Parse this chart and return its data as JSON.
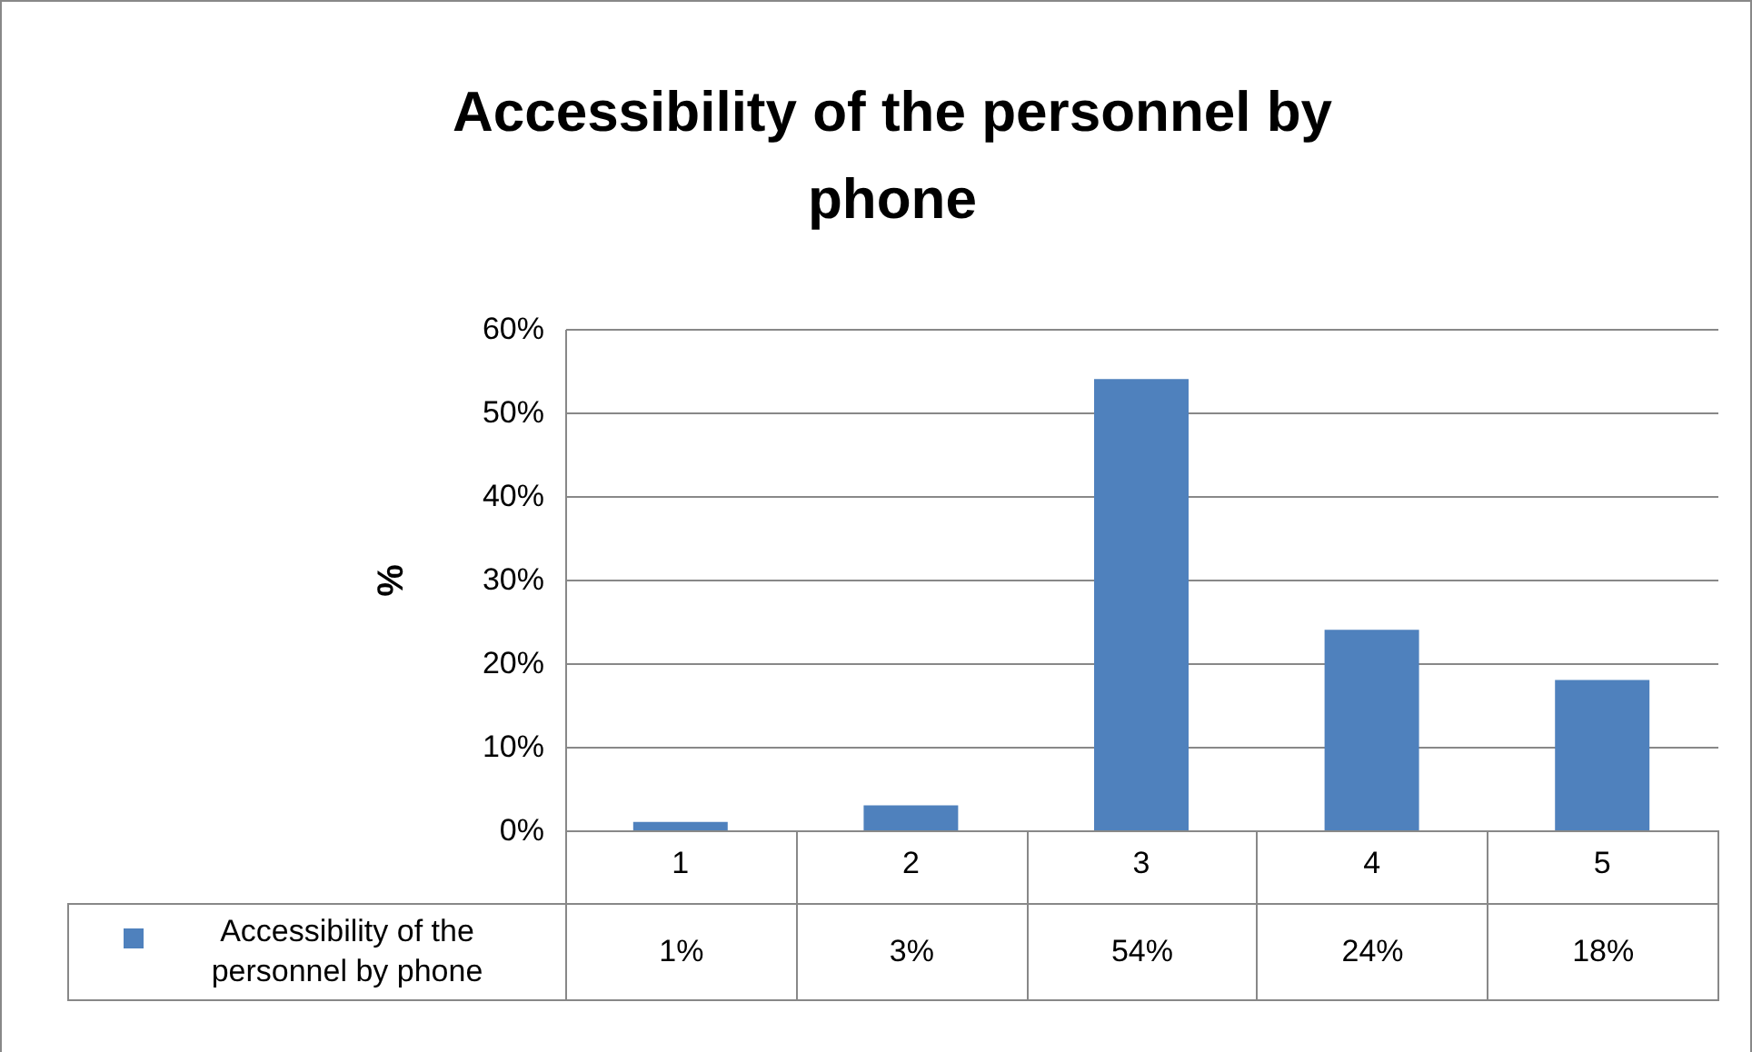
{
  "chart_data": {
    "type": "bar",
    "title": "Accessibility of the personnel by phone",
    "ylabel": "%",
    "categories": [
      "1",
      "2",
      "3",
      "4",
      "5"
    ],
    "series": [
      {
        "name": "Accessibility of the personnel by phone",
        "color": "#4f81bd",
        "values": [
          1,
          3,
          54,
          24,
          18
        ],
        "value_labels": [
          "1%",
          "3%",
          "54%",
          "24%",
          "18%"
        ]
      }
    ],
    "ylim": [
      0,
      60
    ],
    "yticks": [
      {
        "value": 0,
        "label": "0%"
      },
      {
        "value": 10,
        "label": "10%"
      },
      {
        "value": 20,
        "label": "20%"
      },
      {
        "value": 30,
        "label": "30%"
      },
      {
        "value": 40,
        "label": "40%"
      },
      {
        "value": 50,
        "label": "50%"
      },
      {
        "value": 60,
        "label": "60%"
      }
    ],
    "grid": "y",
    "legend": "bottom"
  }
}
